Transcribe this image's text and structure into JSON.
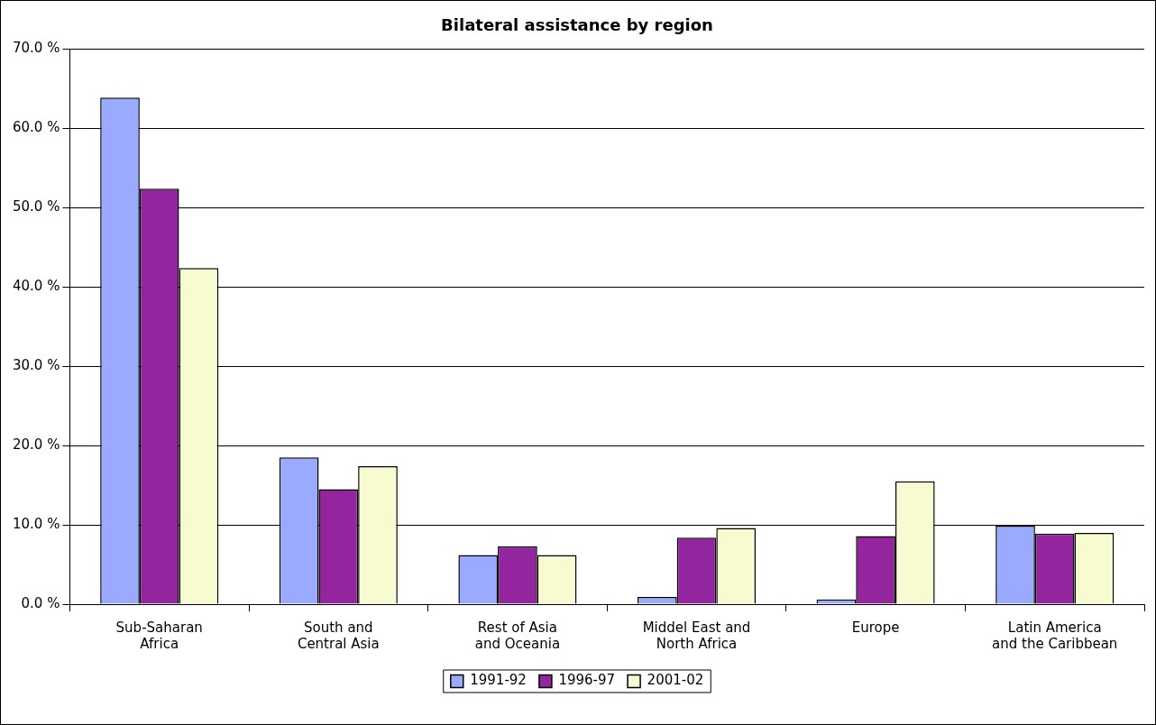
{
  "chart_data": {
    "type": "bar",
    "title": "Bilateral assistance by region",
    "categories": [
      "Sub-Saharan Africa",
      "South and Central Asia",
      "Rest of Asia and Oceania",
      "Middel East and North Africa",
      "Europe",
      "Latin America and the Caribbean"
    ],
    "series": [
      {
        "name": "1991-92",
        "color": "#99aaff",
        "values": [
          63.9,
          18.5,
          6.2,
          0.9,
          0.6,
          9.9
        ]
      },
      {
        "name": "1996-97",
        "color": "#93259e",
        "values": [
          52.4,
          14.5,
          7.3,
          8.4,
          8.6,
          8.9
        ]
      },
      {
        "name": "2001-02",
        "color": "#f7fbcf",
        "values": [
          42.4,
          17.4,
          6.2,
          9.6,
          15.5,
          9.0
        ]
      }
    ],
    "ylim": [
      0,
      70
    ],
    "yticks": [
      {
        "value": 0,
        "label": "0.0 %"
      },
      {
        "value": 10,
        "label": "10.0 %"
      },
      {
        "value": 20,
        "label": "20.0 %"
      },
      {
        "value": 30,
        "label": "30.0 %"
      },
      {
        "value": 40,
        "label": "40.0 %"
      },
      {
        "value": 50,
        "label": "50.0 %"
      },
      {
        "value": 60,
        "label": "60.0 %"
      },
      {
        "value": 70,
        "label": "70.0 %"
      }
    ],
    "grid": "y",
    "legend": "bottom"
  }
}
